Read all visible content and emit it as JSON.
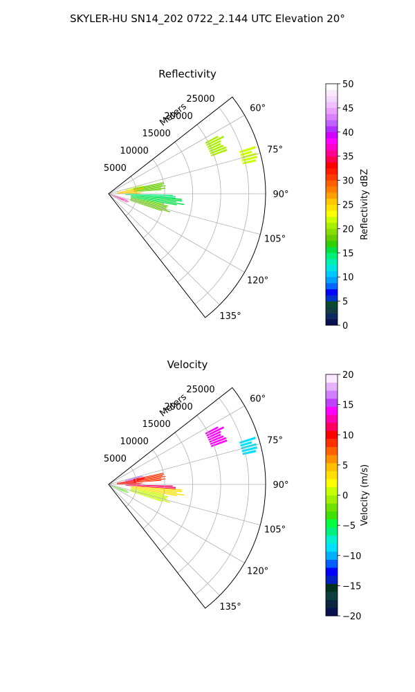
{
  "figure": {
    "suptitle": "SKYLER-HU  SN14_202  0722_2.144 UTC Elevation 20°"
  },
  "chart_data": [
    {
      "type": "heatmap",
      "title": "Reflectivity",
      "radial_label": "Meters",
      "radial_ticks": [
        5000,
        10000,
        15000,
        20000,
        25000
      ],
      "radial_tick_labels": [
        "5000",
        "10000",
        "15000",
        "20000",
        "25000"
      ],
      "r_max": 28000,
      "angle_range_deg": [
        52,
        142
      ],
      "angle_ticks": [
        60,
        75,
        90,
        105,
        120,
        135
      ],
      "angle_tick_labels": [
        "60°",
        "75°",
        "90°",
        "105°",
        "120°",
        "135°"
      ],
      "grid": true,
      "colorbar": {
        "label": "Reflectivity dBZ",
        "min": 0,
        "max": 50,
        "ticks": [
          0,
          5,
          10,
          15,
          20,
          25,
          30,
          35,
          40,
          45,
          50
        ],
        "tick_labels": [
          "0",
          "5",
          "10",
          "15",
          "20",
          "25",
          "30",
          "35",
          "40",
          "45",
          "50"
        ]
      },
      "echoes": [
        {
          "az": [
            62,
            70
          ],
          "r": [
            19500,
            23000
          ],
          "value": 20
        },
        {
          "az": [
            72,
            78
          ],
          "r": [
            24500,
            27500
          ],
          "value": 22
        },
        {
          "az": [
            75,
            80
          ],
          "r": [
            3000,
            7000
          ],
          "value": 22
        },
        {
          "az": [
            78,
            86
          ],
          "r": [
            4500,
            11000
          ],
          "value": 18
        },
        {
          "az": [
            80,
            90
          ],
          "r": [
            1500,
            6500
          ],
          "value": 25
        },
        {
          "az": [
            91,
            94
          ],
          "r": [
            3000,
            15500
          ],
          "value": 14
        },
        {
          "az": [
            94,
            100
          ],
          "r": [
            4000,
            14000
          ],
          "value": 16
        },
        {
          "az": [
            100,
            108
          ],
          "r": [
            4000,
            11500
          ],
          "value": 18
        },
        {
          "az": [
            108,
            116
          ],
          "r": [
            500,
            4000
          ],
          "value": 35
        }
      ]
    },
    {
      "type": "heatmap",
      "title": "Velocity",
      "radial_label": "Meters",
      "radial_ticks": [
        5000,
        10000,
        15000,
        20000,
        25000
      ],
      "radial_tick_labels": [
        "5000",
        "10000",
        "15000",
        "20000",
        "25000"
      ],
      "r_max": 28000,
      "angle_range_deg": [
        52,
        142
      ],
      "angle_ticks": [
        60,
        75,
        90,
        105,
        120,
        135
      ],
      "angle_tick_labels": [
        "60°",
        "75°",
        "90°",
        "105°",
        "120°",
        "135°"
      ],
      "grid": true,
      "colorbar": {
        "label": "Velocity (m/s)",
        "min": -20,
        "max": 20,
        "ticks": [
          -20,
          -15,
          -10,
          -5,
          0,
          5,
          10,
          15,
          20
        ],
        "tick_labels": [
          "−20",
          "−15",
          "−10",
          "−5",
          "0",
          "5",
          "10",
          "15",
          "20"
        ]
      },
      "echoes": [
        {
          "az": [
            62,
            70
          ],
          "r": [
            19500,
            23000
          ],
          "value": 14
        },
        {
          "az": [
            72,
            78
          ],
          "r": [
            24500,
            27500
          ],
          "value": -9
        },
        {
          "az": [
            75,
            80
          ],
          "r": [
            3000,
            7000
          ],
          "value": 15
        },
        {
          "az": [
            78,
            86
          ],
          "r": [
            4500,
            11000
          ],
          "value": 9
        },
        {
          "az": [
            80,
            90
          ],
          "r": [
            1500,
            6500
          ],
          "value": 10
        },
        {
          "az": [
            91,
            94
          ],
          "r": [
            3000,
            15500
          ],
          "value": 11
        },
        {
          "az": [
            94,
            100
          ],
          "r": [
            4000,
            14000
          ],
          "value": 3
        },
        {
          "az": [
            100,
            108
          ],
          "r": [
            4000,
            11500
          ],
          "value": 0
        },
        {
          "az": [
            108,
            116
          ],
          "r": [
            500,
            4000
          ],
          "value": -3
        }
      ]
    }
  ]
}
